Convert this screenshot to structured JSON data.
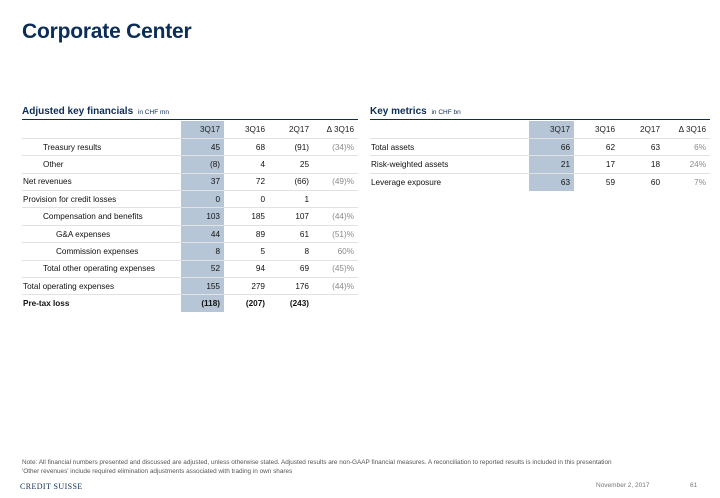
{
  "page_title": "Corporate Center",
  "left": {
    "title": "Adjusted key financials",
    "unit": "in CHF mn",
    "columns": [
      "3Q17",
      "3Q16",
      "2Q17",
      "Δ 3Q16"
    ],
    "rows": [
      {
        "label": "Treasury results",
        "values": [
          "45",
          "68",
          "(91)",
          "(34)%"
        ]
      },
      {
        "label": "Other",
        "values": [
          "(8)",
          "4",
          "25",
          ""
        ]
      },
      {
        "label": "Net revenues",
        "values": [
          "37",
          "72",
          "(66)",
          "(49)%"
        ]
      },
      {
        "label": "Provision for credit losses",
        "values": [
          "0",
          "0",
          "1",
          ""
        ]
      },
      {
        "label": "Compensation and benefits",
        "values": [
          "103",
          "185",
          "107",
          "(44)%"
        ]
      },
      {
        "label": "G&A expenses",
        "values": [
          "44",
          "89",
          "61",
          "(51)%"
        ]
      },
      {
        "label": "Commission expenses",
        "values": [
          "8",
          "5",
          "8",
          "60%"
        ]
      },
      {
        "label": "Total other operating expenses",
        "values": [
          "52",
          "94",
          "69",
          "(45)%"
        ]
      },
      {
        "label": "Total operating expenses",
        "values": [
          "155",
          "279",
          "176",
          "(44)%"
        ]
      },
      {
        "label": "Pre-tax loss",
        "values": [
          "(118)",
          "(207)",
          "(243)",
          ""
        ]
      }
    ]
  },
  "right": {
    "title": "Key metrics",
    "unit": "in CHF bn",
    "columns": [
      "3Q17",
      "3Q16",
      "2Q17",
      "Δ 3Q16"
    ],
    "rows": [
      {
        "label": "Total assets",
        "values": [
          "66",
          "62",
          "63",
          "6%"
        ]
      },
      {
        "label": "Risk-weighted assets",
        "values": [
          "21",
          "17",
          "18",
          "24%"
        ]
      },
      {
        "label": "Leverage exposure",
        "values": [
          "63",
          "59",
          "60",
          "7%"
        ]
      }
    ]
  },
  "note_line1": "Note: All financial numbers presented and discussed are adjusted, unless otherwise stated. Adjusted results are non-GAAP financial measures. A reconciliation to reported results is included in this presentation",
  "note_line2": "'Other revenues' include required elimination adjustments associated with trading in own shares",
  "footer": {
    "logo": "CREDIT SUISSE",
    "date": "November 2, 2017",
    "page": "61"
  },
  "colors": {
    "brand_navy": "#0b2d57",
    "highlight_column": "#b7c6d6",
    "delta_grey": "#8a8a8a"
  }
}
